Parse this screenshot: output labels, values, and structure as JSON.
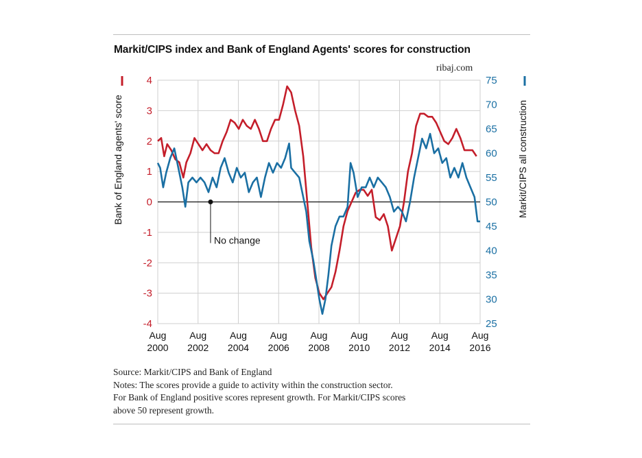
{
  "title": "Markit/CIPS index and Bank of England Agents' scores for construction",
  "credit": "ribaj.com",
  "notes": {
    "source": "Source: Markit/CIPS and Bank of England",
    "line1": "Notes: The scores provide a guide to activity within the construction sector.",
    "line2": "For Bank of England positive scores represent growth. For Markit/CIPS scores",
    "line3": "above 50 represent growth."
  },
  "colors": {
    "boe": "#c41e2a",
    "cips": "#1a6fa3",
    "grid": "#cfcfcf",
    "zero": "#111111"
  },
  "chart_data": {
    "type": "line",
    "title": "Markit/CIPS index and Bank of England Agents' scores for construction",
    "x_ticks": [
      {
        "top": "Aug",
        "bottom": "2000",
        "x": 2000.58
      },
      {
        "top": "Aug",
        "bottom": "2002",
        "x": 2002.58
      },
      {
        "top": "Aug",
        "bottom": "2004",
        "x": 2004.58
      },
      {
        "top": "Aug",
        "bottom": "2006",
        "x": 2006.58
      },
      {
        "top": "Aug",
        "bottom": "2008",
        "x": 2008.58
      },
      {
        "top": "Aug",
        "bottom": "2010",
        "x": 2010.58
      },
      {
        "top": "Aug",
        "bottom": "2012",
        "x": 2012.58
      },
      {
        "top": "Aug",
        "bottom": "2014",
        "x": 2014.58
      },
      {
        "top": "Aug",
        "bottom": "2016",
        "x": 2016.58
      }
    ],
    "xlim": [
      2000.58,
      2016.58
    ],
    "y_left": {
      "label": "Bank of England agents' score",
      "range": [
        -4,
        4
      ],
      "ticks": [
        "4",
        "3",
        "2",
        "1",
        "0",
        "-1",
        "-2",
        "-3",
        "-4"
      ]
    },
    "y_right": {
      "label": "Markit/CIPS all construction",
      "range": [
        25,
        75
      ],
      "ticks": [
        "75",
        "70",
        "65",
        "60",
        "55",
        "50",
        "45",
        "40",
        "35",
        "30",
        "25"
      ]
    },
    "annotation": {
      "text": "No change",
      "x": 2003.2,
      "y": 0
    },
    "grid": true,
    "series": [
      {
        "name": "Bank of England agents' score",
        "axis": "left",
        "color": "#c41e2a",
        "points": [
          [
            2000.58,
            2.0
          ],
          [
            2000.75,
            2.1
          ],
          [
            2000.9,
            1.5
          ],
          [
            2001.05,
            1.9
          ],
          [
            2001.25,
            1.7
          ],
          [
            2001.45,
            1.4
          ],
          [
            2001.65,
            1.3
          ],
          [
            2001.85,
            0.8
          ],
          [
            2002.0,
            1.3
          ],
          [
            2002.2,
            1.6
          ],
          [
            2002.4,
            2.1
          ],
          [
            2002.6,
            1.9
          ],
          [
            2002.8,
            1.7
          ],
          [
            2003.0,
            1.9
          ],
          [
            2003.2,
            1.7
          ],
          [
            2003.4,
            1.6
          ],
          [
            2003.6,
            1.6
          ],
          [
            2003.8,
            2.0
          ],
          [
            2004.0,
            2.3
          ],
          [
            2004.2,
            2.7
          ],
          [
            2004.4,
            2.6
          ],
          [
            2004.6,
            2.4
          ],
          [
            2004.8,
            2.7
          ],
          [
            2005.0,
            2.5
          ],
          [
            2005.2,
            2.4
          ],
          [
            2005.4,
            2.7
          ],
          [
            2005.6,
            2.4
          ],
          [
            2005.8,
            2.0
          ],
          [
            2006.0,
            2.0
          ],
          [
            2006.2,
            2.4
          ],
          [
            2006.4,
            2.7
          ],
          [
            2006.6,
            2.7
          ],
          [
            2006.8,
            3.2
          ],
          [
            2007.0,
            3.8
          ],
          [
            2007.2,
            3.6
          ],
          [
            2007.4,
            3.0
          ],
          [
            2007.6,
            2.5
          ],
          [
            2007.8,
            1.5
          ],
          [
            2008.0,
            0.0
          ],
          [
            2008.2,
            -1.5
          ],
          [
            2008.4,
            -2.5
          ],
          [
            2008.6,
            -3.0
          ],
          [
            2008.8,
            -3.2
          ],
          [
            2009.0,
            -3.0
          ],
          [
            2009.2,
            -2.8
          ],
          [
            2009.4,
            -2.3
          ],
          [
            2009.6,
            -1.6
          ],
          [
            2009.8,
            -0.8
          ],
          [
            2010.0,
            -0.3
          ],
          [
            2010.2,
            0.0
          ],
          [
            2010.4,
            0.3
          ],
          [
            2010.6,
            0.4
          ],
          [
            2010.8,
            0.4
          ],
          [
            2011.0,
            0.2
          ],
          [
            2011.2,
            0.4
          ],
          [
            2011.4,
            -0.5
          ],
          [
            2011.6,
            -0.6
          ],
          [
            2011.8,
            -0.4
          ],
          [
            2012.0,
            -0.8
          ],
          [
            2012.2,
            -1.6
          ],
          [
            2012.4,
            -1.2
          ],
          [
            2012.6,
            -0.8
          ],
          [
            2012.8,
            0.0
          ],
          [
            2013.0,
            1.0
          ],
          [
            2013.2,
            1.6
          ],
          [
            2013.4,
            2.5
          ],
          [
            2013.6,
            2.9
          ],
          [
            2013.8,
            2.9
          ],
          [
            2014.0,
            2.8
          ],
          [
            2014.2,
            2.8
          ],
          [
            2014.4,
            2.6
          ],
          [
            2014.6,
            2.3
          ],
          [
            2014.8,
            2.0
          ],
          [
            2015.0,
            1.9
          ],
          [
            2015.2,
            2.1
          ],
          [
            2015.4,
            2.4
          ],
          [
            2015.6,
            2.1
          ],
          [
            2015.8,
            1.7
          ],
          [
            2016.0,
            1.7
          ],
          [
            2016.2,
            1.7
          ],
          [
            2016.4,
            1.5
          ]
        ]
      },
      {
        "name": "Markit/CIPS all construction",
        "axis": "right",
        "color": "#1a6fa3",
        "points": [
          [
            2000.58,
            58
          ],
          [
            2000.7,
            57
          ],
          [
            2000.85,
            53
          ],
          [
            2001.0,
            56
          ],
          [
            2001.2,
            59
          ],
          [
            2001.4,
            61
          ],
          [
            2001.6,
            57
          ],
          [
            2001.8,
            53
          ],
          [
            2001.95,
            49
          ],
          [
            2002.1,
            54
          ],
          [
            2002.3,
            55
          ],
          [
            2002.5,
            54
          ],
          [
            2002.7,
            55
          ],
          [
            2002.9,
            54
          ],
          [
            2003.1,
            52
          ],
          [
            2003.3,
            55
          ],
          [
            2003.5,
            53
          ],
          [
            2003.7,
            57
          ],
          [
            2003.9,
            59
          ],
          [
            2004.1,
            56
          ],
          [
            2004.3,
            54
          ],
          [
            2004.5,
            57
          ],
          [
            2004.7,
            55
          ],
          [
            2004.9,
            56
          ],
          [
            2005.1,
            52
          ],
          [
            2005.3,
            54
          ],
          [
            2005.5,
            55
          ],
          [
            2005.7,
            51
          ],
          [
            2005.9,
            55
          ],
          [
            2006.1,
            58
          ],
          [
            2006.3,
            56
          ],
          [
            2006.5,
            58
          ],
          [
            2006.7,
            57
          ],
          [
            2006.9,
            59
          ],
          [
            2007.1,
            62
          ],
          [
            2007.2,
            57
          ],
          [
            2007.4,
            56
          ],
          [
            2007.6,
            55
          ],
          [
            2007.8,
            51
          ],
          [
            2007.95,
            48
          ],
          [
            2008.1,
            42
          ],
          [
            2008.3,
            38
          ],
          [
            2008.45,
            34
          ],
          [
            2008.6,
            30
          ],
          [
            2008.75,
            27
          ],
          [
            2008.9,
            30
          ],
          [
            2009.05,
            35
          ],
          [
            2009.2,
            41
          ],
          [
            2009.4,
            45
          ],
          [
            2009.6,
            47
          ],
          [
            2009.8,
            47
          ],
          [
            2010.0,
            49
          ],
          [
            2010.15,
            58
          ],
          [
            2010.3,
            56
          ],
          [
            2010.5,
            51
          ],
          [
            2010.7,
            53
          ],
          [
            2010.9,
            53
          ],
          [
            2011.1,
            55
          ],
          [
            2011.3,
            53
          ],
          [
            2011.5,
            55
          ],
          [
            2011.7,
            54
          ],
          [
            2011.9,
            53
          ],
          [
            2012.1,
            51
          ],
          [
            2012.3,
            48
          ],
          [
            2012.5,
            49
          ],
          [
            2012.7,
            48
          ],
          [
            2012.9,
            46
          ],
          [
            2013.1,
            50
          ],
          [
            2013.3,
            55
          ],
          [
            2013.5,
            59
          ],
          [
            2013.7,
            63
          ],
          [
            2013.9,
            61
          ],
          [
            2014.1,
            64
          ],
          [
            2014.3,
            60
          ],
          [
            2014.5,
            61
          ],
          [
            2014.7,
            58
          ],
          [
            2014.9,
            59
          ],
          [
            2015.1,
            55
          ],
          [
            2015.3,
            57
          ],
          [
            2015.5,
            55
          ],
          [
            2015.7,
            58
          ],
          [
            2015.9,
            55
          ],
          [
            2016.1,
            53
          ],
          [
            2016.3,
            51
          ],
          [
            2016.45,
            46
          ],
          [
            2016.58,
            46
          ]
        ]
      }
    ]
  }
}
